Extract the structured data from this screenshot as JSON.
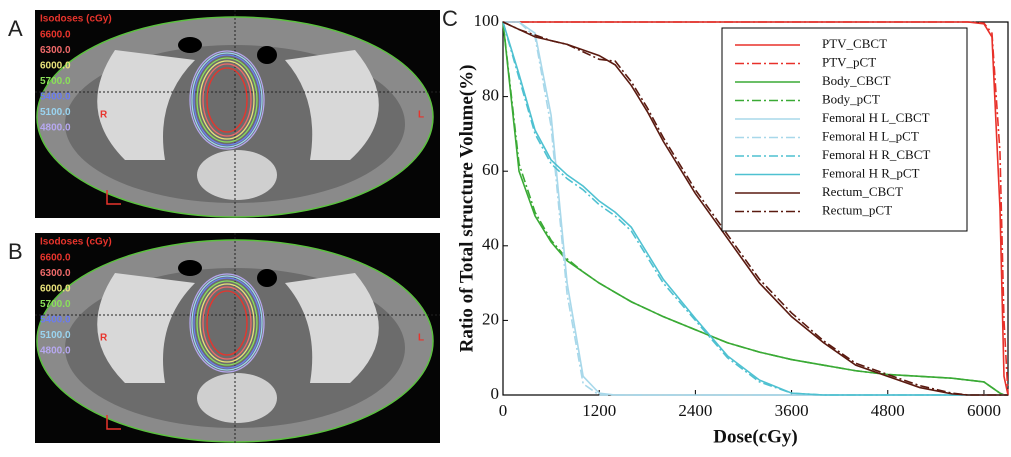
{
  "images": [
    {
      "label": "A",
      "isodose_title": "Isodoses (cGy)",
      "isodoses": [
        "6600.0",
        "6300.0",
        "6000.0",
        "5700.0",
        "5400.0",
        "5100.0",
        "4800.0"
      ],
      "isodose_colors": [
        "#e8342c",
        "#f06a6a",
        "#e8e27a",
        "#8be05a",
        "#6a7cf0",
        "#9ad4f0",
        "#b6a8f0"
      ],
      "left_label": "R",
      "right_label": "L"
    },
    {
      "label": "B",
      "isodose_title": "Isodoses (cGy)",
      "isodoses": [
        "6600.0",
        "6300.0",
        "6000.0",
        "5700.0",
        "5400.0",
        "5100.0",
        "4800.0"
      ],
      "isodose_colors": [
        "#e8342c",
        "#f06a6a",
        "#e8e27a",
        "#8be05a",
        "#6a7cf0",
        "#9ad4f0",
        "#b6a8f0"
      ],
      "left_label": "R",
      "right_label": "L"
    }
  ],
  "chart_data": {
    "type": "line",
    "label": "C",
    "x_label": "Dose(cGy)",
    "y_label": "Ratio of Total structure  Volume(%)",
    "xlim": [
      0,
      6300
    ],
    "xticks": [
      0,
      1200,
      2400,
      3600,
      4800,
      6000
    ],
    "ylim": [
      0,
      100
    ],
    "yticks": [
      0,
      20,
      40,
      60,
      80,
      100
    ],
    "legend": "upper right",
    "x": [
      0,
      200,
      400,
      600,
      800,
      1000,
      1200,
      1400,
      1600,
      1800,
      2000,
      2400,
      2800,
      3200,
      3600,
      4000,
      4400,
      4800,
      5200,
      5600,
      5800,
      6000,
      6100,
      6200,
      6250,
      6300
    ],
    "series": [
      {
        "name": "PTV_CBCT",
        "color": "#e8312a",
        "dash": "solid",
        "values": [
          100,
          100,
          100,
          100,
          100,
          100,
          100,
          100,
          100,
          100,
          100,
          100,
          100,
          100,
          100,
          100,
          100,
          100,
          100,
          100,
          100,
          99.5,
          96,
          50,
          5,
          0
        ]
      },
      {
        "name": "PTV_pCT",
        "color": "#e8312a",
        "dash": "dashdot",
        "values": [
          100,
          100,
          100,
          100,
          100,
          100,
          100,
          100,
          100,
          100,
          100,
          100,
          100,
          100,
          100,
          100,
          100,
          100,
          100,
          100,
          100,
          99.7,
          97,
          65,
          20,
          0
        ]
      },
      {
        "name": "Body_CBCT",
        "color": "#3aaa35",
        "dash": "solid",
        "values": [
          100,
          60,
          48,
          41,
          36,
          33,
          30,
          27.5,
          25,
          23,
          21,
          17.5,
          14,
          11.5,
          9.5,
          8,
          6.5,
          5.5,
          5,
          4.5,
          4,
          3.5,
          2,
          0.5,
          0,
          0
        ]
      },
      {
        "name": "Body_pCT",
        "color": "#3aaa35",
        "dash": "dashdot",
        "values": [
          100,
          62,
          49,
          41.5,
          36.5,
          33,
          30,
          27.5,
          25,
          23,
          21,
          17.5,
          14,
          11.5,
          9.5,
          8,
          6.5,
          5.5,
          5,
          4.5,
          4,
          3.5,
          2,
          0.5,
          0,
          0
        ]
      },
      {
        "name": "Femoral H L_CBCT",
        "color": "#a8d8ea",
        "dash": "solid",
        "values": [
          100,
          100,
          97,
          75,
          30,
          5,
          0.5,
          0,
          0,
          0,
          0,
          0,
          0,
          0,
          0,
          0,
          0,
          0,
          0,
          0,
          0,
          0,
          0,
          0,
          0,
          0
        ]
      },
      {
        "name": "Femoral H L_pCT",
        "color": "#a8d8ea",
        "dash": "dashdot",
        "values": [
          100,
          100,
          96,
          72,
          27,
          3,
          0,
          0,
          0,
          0,
          0,
          0,
          0,
          0,
          0,
          0,
          0,
          0,
          0,
          0,
          0,
          0,
          0,
          0,
          0,
          0
        ]
      },
      {
        "name": "Femoral H R_CBCT",
        "color": "#4fc1d1",
        "dash": "dashdot",
        "values": [
          100,
          85,
          70,
          62,
          58,
          55,
          51,
          48,
          44,
          37,
          30,
          20,
          10,
          3.5,
          0.5,
          0,
          0,
          0,
          0,
          0,
          0,
          0,
          0,
          0,
          0,
          0
        ]
      },
      {
        "name": "Femoral H R_pCT",
        "color": "#4fc1d1",
        "dash": "solid",
        "values": [
          100,
          86,
          71,
          63,
          59,
          56,
          52,
          49,
          45,
          38,
          31,
          20.5,
          10.5,
          4,
          0.5,
          0,
          0,
          0,
          0,
          0,
          0,
          0,
          0,
          0,
          0,
          0
        ]
      },
      {
        "name": "Rectum_CBCT",
        "color": "#5a1a10",
        "dash": "solid",
        "values": [
          100,
          98,
          96,
          95,
          94,
          92.5,
          91,
          88.5,
          83,
          76,
          68,
          54,
          42,
          30,
          21,
          14,
          8,
          5,
          2,
          0.3,
          0,
          0,
          0,
          0,
          0,
          0
        ]
      },
      {
        "name": "Rectum_pCT",
        "color": "#5a1a10",
        "dash": "dashdot",
        "values": [
          100,
          98,
          96.5,
          95,
          94,
          92,
          90,
          89.5,
          84,
          77,
          69,
          55,
          43,
          31,
          22,
          14.5,
          8.5,
          5.5,
          2.5,
          0.5,
          0,
          0,
          0,
          0,
          0,
          0
        ]
      }
    ]
  }
}
